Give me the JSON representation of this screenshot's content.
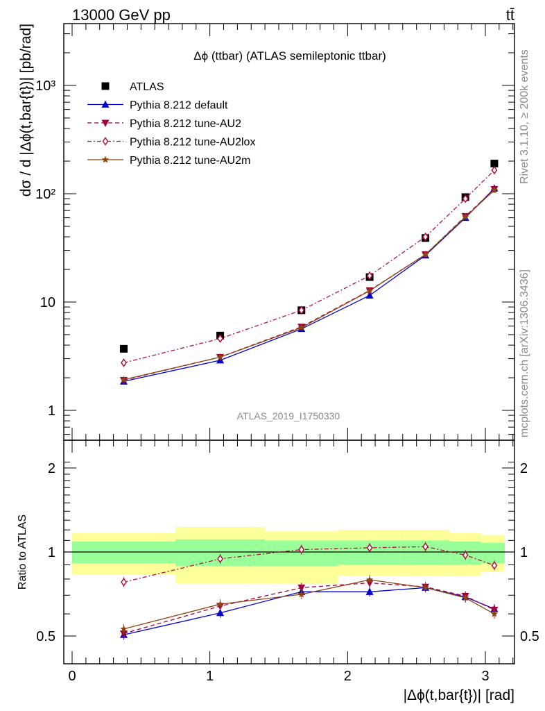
{
  "header": {
    "left": "13000 GeV pp",
    "right": "tt̄"
  },
  "side_labels": {
    "rivet": "Rivet 3.1.10, ≥ 200k events",
    "mcplots": "mcplots.cern.ch [arXiv:1306.3436]"
  },
  "chart_data": [
    {
      "type": "line",
      "title": "Δϕ (ttbar) (ATLAS semileptonic ttbar)",
      "watermark": "ATLAS_2019_I1750330",
      "ylabel": "dσ / d |Δϕ(t,bar{t})| [pb/rad]",
      "yscale": "log",
      "ylim": [
        0.55,
        4000
      ],
      "xlim": [
        -0.08,
        3.22
      ],
      "ytick_labels": [
        "1",
        "10",
        "10²",
        "10³"
      ],
      "x": [
        0.375,
        1.075,
        1.665,
        2.16,
        2.565,
        2.855,
        3.065
      ],
      "series": [
        {
          "name": "ATLAS",
          "marker": "square",
          "color": "#000000",
          "line": "none",
          "values": [
            3.7,
            4.9,
            8.4,
            17.0,
            39.0,
            93.0,
            190.0
          ]
        },
        {
          "name": "Pythia 8.212 default",
          "marker": "triangle-up",
          "color": "#0000cc",
          "line": "solid",
          "values": [
            1.85,
            2.9,
            5.65,
            11.5,
            27.0,
            60.0,
            112.0
          ]
        },
        {
          "name": "Pythia 8.212 tune-AU2",
          "marker": "triangle-down",
          "color": "#a0003c",
          "line": "dashed",
          "values": [
            1.9,
            3.1,
            5.9,
            12.8,
            27.5,
            62.0,
            110.0
          ]
        },
        {
          "name": "Pythia 8.212 tune-AU2lox",
          "marker": "diamond-open",
          "color": "#b0103c",
          "line": "dashdot",
          "values": [
            2.75,
            4.6,
            8.4,
            17.5,
            40.0,
            90.0,
            165.0
          ]
        },
        {
          "name": "Pythia 8.212 tune-AU2m",
          "marker": "star",
          "color": "#8b4513",
          "line": "solid",
          "values": [
            1.92,
            3.1,
            5.8,
            12.7,
            27.5,
            61.0,
            108.0
          ]
        }
      ]
    },
    {
      "type": "line",
      "ylabel": "Ratio to ATLAS",
      "xlabel": "|Δϕ(t,bar{t})| [rad]",
      "ylim": [
        0.43,
        2.3
      ],
      "xlim": [
        -0.08,
        3.22
      ],
      "xtick_labels": [
        "0",
        "1",
        "2",
        "3"
      ],
      "ytick_labels": [
        "0.5",
        "1",
        "2"
      ],
      "bands": {
        "edges": [
          0.0,
          0.75,
          1.4,
          1.93,
          2.38,
          2.74,
          2.97,
          3.14
        ],
        "inner_lo": [
          0.91,
          0.89,
          0.89,
          0.9,
          0.9,
          0.9,
          0.91
        ],
        "inner_hi": [
          1.09,
          1.11,
          1.1,
          1.1,
          1.1,
          1.09,
          1.08
        ],
        "outer_lo": [
          0.83,
          0.77,
          0.77,
          0.82,
          0.82,
          0.82,
          0.85
        ],
        "outer_hi": [
          1.17,
          1.23,
          1.19,
          1.2,
          1.2,
          1.17,
          1.15
        ]
      },
      "x": [
        0.375,
        1.075,
        1.665,
        2.16,
        2.565,
        2.855,
        3.065
      ],
      "series": [
        {
          "name": "Pythia 8.212 default",
          "color": "#0000cc",
          "line": "solid",
          "marker": "triangle-up",
          "values": [
            0.505,
            0.605,
            0.72,
            0.72,
            0.745,
            0.69,
            0.625
          ]
        },
        {
          "name": "Pythia 8.212 tune-AU2",
          "color": "#a0003c",
          "line": "dashed",
          "marker": "triangle-down",
          "values": [
            0.51,
            0.64,
            0.745,
            0.775,
            0.75,
            0.695,
            0.62
          ]
        },
        {
          "name": "Pythia 8.212 tune-AU2lox",
          "color": "#b0103c",
          "line": "dashdot",
          "marker": "diamond-open",
          "values": [
            0.78,
            0.945,
            1.02,
            1.035,
            1.045,
            0.975,
            0.895
          ]
        },
        {
          "name": "Pythia 8.212 tune-AU2m",
          "color": "#8b4513",
          "line": "solid",
          "marker": "star",
          "values": [
            0.53,
            0.65,
            0.705,
            0.795,
            0.745,
            0.685,
            0.6
          ]
        }
      ]
    }
  ]
}
